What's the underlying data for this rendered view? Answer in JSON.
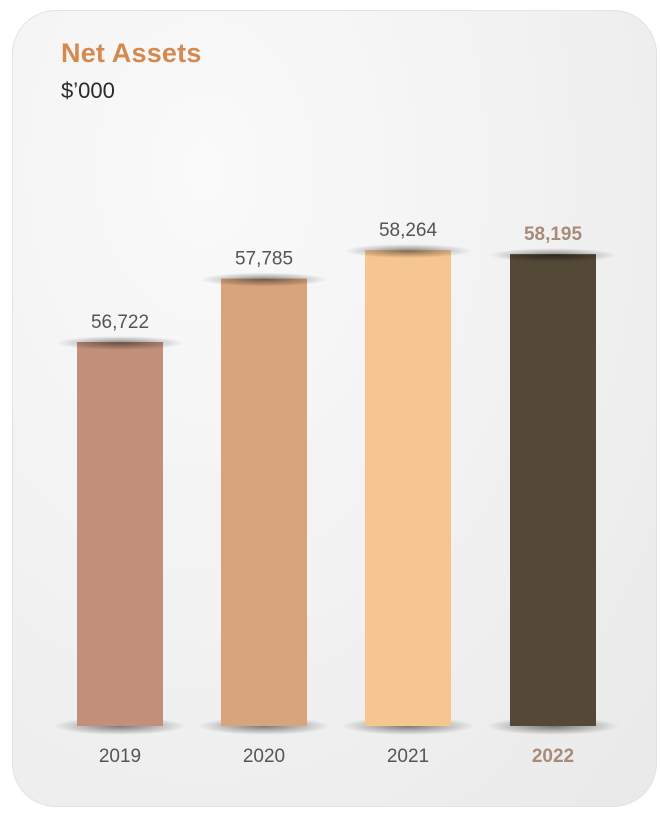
{
  "chart_data": {
    "type": "bar",
    "title": "Net Assets",
    "subtitle": "$’000",
    "categories": [
      "2019",
      "2020",
      "2021",
      "2022"
    ],
    "values": [
      56722,
      57785,
      58264,
      58195
    ],
    "value_labels": [
      "56,722",
      "57,785",
      "58,264",
      "58,195"
    ],
    "highlight_index": 3,
    "xlabel": "",
    "ylabel": "",
    "grid": false,
    "colors": [
      "#c2907a",
      "#d8a47e",
      "#f5c68f",
      "#544836"
    ],
    "highlight_text_color": "#a88c79",
    "title_color": "#d4894f"
  }
}
